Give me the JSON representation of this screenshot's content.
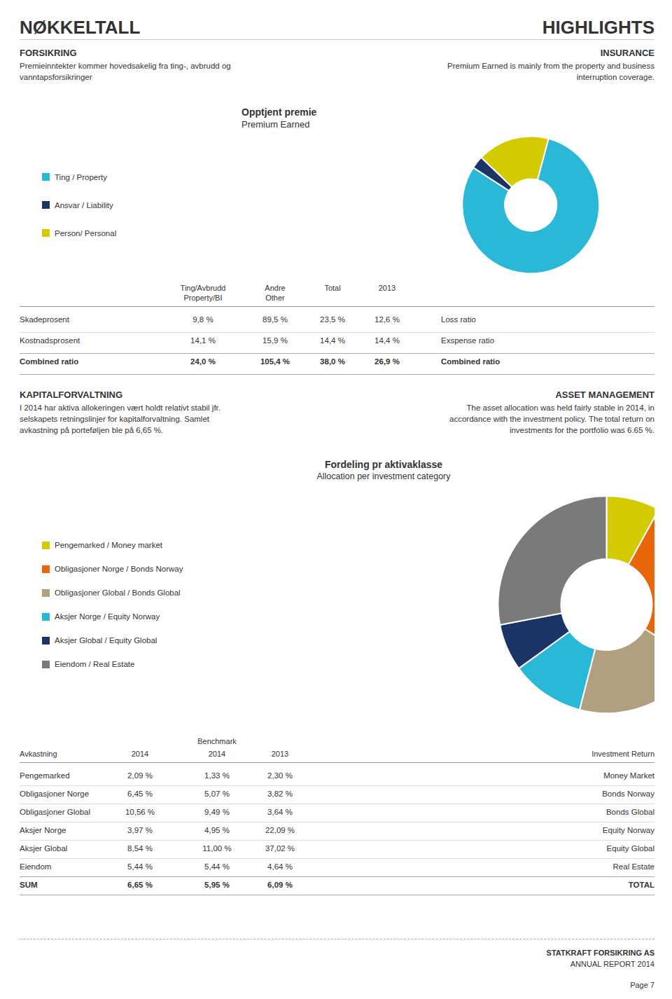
{
  "title": "NØKKELTALL",
  "subtitle": "HIGHLIGHTS",
  "annotations": [
    "STATKRAFT FORSIKRING AS",
    "ANNUAL REPORT 2014",
    "Page 7"
  ],
  "chart_data": [
    {
      "type": "pie",
      "title": "Opptjent premie",
      "subtitle": "Premium Earned",
      "categories": [
        "Ting / Property",
        "Ansvar / Liability",
        "Person/ Personal"
      ],
      "values": [
        80,
        3,
        17
      ],
      "colors": [
        "#29b8d8",
        "#1a3565",
        "#d4ca00"
      ],
      "legend": "left",
      "annotations": [
        [
          "FORSIKRING",
          "INSURANCE"
        ],
        [
          "Premieinntekter kommer hovedsakelig fra ting-, avbrudd og",
          "Premium Earned is mainly from the property and business"
        ],
        [
          "vanntapsforsikringer",
          "interruption coverage."
        ]
      ],
      "table": {
        "header": [
          [
            null,
            "Ting/Avbrudd",
            "Andre",
            "Total",
            "2013",
            null
          ],
          [
            null,
            "Property/BI",
            "Other",
            null,
            null,
            null
          ]
        ],
        "rows": [
          [
            "Skadeprosent",
            "9,8 %",
            "89,5 %",
            "23,5 %",
            "12,6 %",
            "Loss ratio"
          ],
          [
            "Kostnadsprosent",
            "14,1 %",
            "15,9 %",
            "14,4 %",
            "14,4 %",
            "Exspense ratio"
          ],
          [
            "Combined ratio",
            "24,0 %",
            "105,4 %",
            "38,0 %",
            "26,9 %",
            "Combined ratio"
          ]
        ]
      }
    },
    {
      "type": "pie",
      "title": "Fordeling pr aktivaklasse",
      "subtitle": "Allocation per investment category",
      "categories": [
        "Pengemarked / Money market",
        "Obligasjoner Norge / Bonds Norway",
        "Obligasjoner Global / Bonds Global",
        "Aksjer Norge / Equity Norway",
        "Aksjer Global / Equity Global",
        "Eiendom / Real Estate"
      ],
      "values": [
        8,
        26,
        20,
        11,
        7,
        28
      ],
      "colors": [
        "#d4ca00",
        "#e8650a",
        "#b0a080",
        "#29b8d8",
        "#1a3565",
        "#7a7a7a"
      ],
      "legend": "left",
      "annotations": [
        [
          "KAPITALFORVALTNING",
          "ASSET MANAGEMENT"
        ],
        [
          "I 2014 har aktiva allokeringen vært holdt relativt stabil jfr.",
          "The asset allocation was held fairly stable in 2014, in"
        ],
        [
          "selskapets retningslinjer for kapitalforvaltning. Samlet",
          "accordance with the investment policy. The total return on"
        ],
        [
          "avkastning på porteføljen ble på 6,65 %.",
          "investments for the portfolio was 6.65 %."
        ]
      ],
      "table": {
        "header": [
          [
            null,
            null,
            "Benchmark",
            null,
            null
          ],
          [
            "Avkastning",
            "2014",
            "2014",
            "2013",
            "Investment Return"
          ]
        ],
        "rows": [
          [
            "Pengemarked",
            "2,09 %",
            "1,33 %",
            "2,30 %",
            "Money Market"
          ],
          [
            "Obligasjoner Norge",
            "6,45 %",
            "5,07 %",
            "3,82 %",
            "Bonds Norway"
          ],
          [
            "Obligasjoner Global",
            "10,56 %",
            "9,49 %",
            "3,64 %",
            "Bonds Global"
          ],
          [
            "Aksjer Norge",
            "3,97 %",
            "4,95 %",
            "22,09 %",
            "Equity Norway"
          ],
          [
            "Aksjer Global",
            "8,54 %",
            "11,00 %",
            "37,02 %",
            "Equity Global"
          ],
          [
            "Eiendom",
            "5,44 %",
            "5,44 %",
            "4,64 %",
            "Real Estate"
          ],
          [
            "SUM",
            "6,65 %",
            "5,95 %",
            "6,09 %",
            "TOTAL"
          ]
        ]
      }
    }
  ]
}
